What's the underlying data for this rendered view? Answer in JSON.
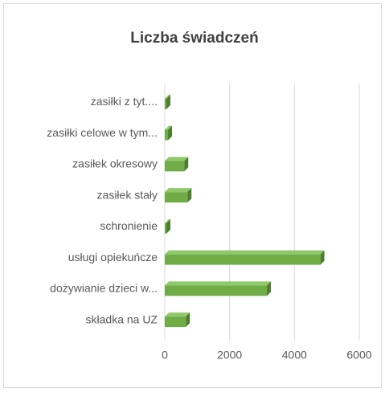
{
  "chart_data": {
    "type": "bar",
    "orientation": "horizontal",
    "title": "Liczba świadczeń",
    "categories": [
      "zasiłki z tyt....",
      "zasiłki celowe w tym...",
      "zasiłek okresowy",
      "zasiłek stały",
      "schronienie",
      "usługi opiekuńcze",
      "dożywianie dzieci w...",
      "składka na UZ"
    ],
    "values": [
      50,
      100,
      600,
      700,
      50,
      4800,
      3150,
      650
    ],
    "color": "#70ad47",
    "xlim": [
      0,
      6000
    ],
    "xticks": [
      0,
      2000,
      4000,
      6000
    ],
    "grid": true
  }
}
